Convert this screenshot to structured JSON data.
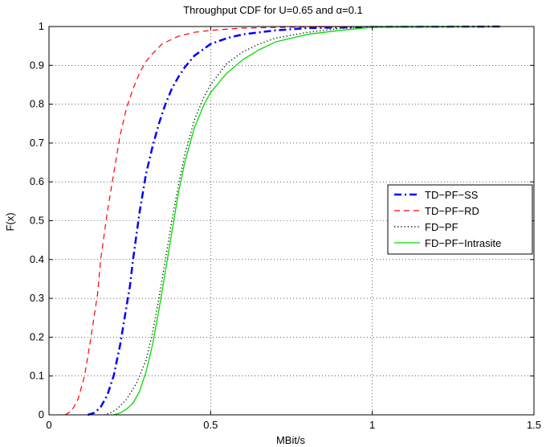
{
  "chart_data": {
    "type": "line",
    "title_prefix": "Throughput CDF for U=0.65 and ",
    "title_symbol": "α",
    "title_suffix": "=0.1",
    "xlabel": "MBit/s",
    "ylabel": "F(x)",
    "xlim": [
      0,
      1.5
    ],
    "ylim": [
      0,
      1
    ],
    "xticks": [
      0,
      0.5,
      1,
      1.5
    ],
    "xtick_labels": [
      "0",
      "0.5",
      "1",
      "1.5"
    ],
    "yticks": [
      0,
      0.1,
      0.2,
      0.3,
      0.4,
      0.5,
      0.6,
      0.7,
      0.8,
      0.9,
      1
    ],
    "ytick_labels": [
      "0",
      "0.1",
      "0.2",
      "0.3",
      "0.4",
      "0.5",
      "0.6",
      "0.7",
      "0.8",
      "0.9",
      "1"
    ],
    "grid": true,
    "legend_position": "right-middle",
    "series": [
      {
        "name": "TD−PF−SS",
        "color": "#0000ff",
        "style": "dashdot",
        "points": [
          [
            0.12,
            0
          ],
          [
            0.14,
            0.005
          ],
          [
            0.16,
            0.02
          ],
          [
            0.18,
            0.05
          ],
          [
            0.2,
            0.1
          ],
          [
            0.22,
            0.18
          ],
          [
            0.24,
            0.28
          ],
          [
            0.25,
            0.33
          ],
          [
            0.26,
            0.4
          ],
          [
            0.27,
            0.46
          ],
          [
            0.28,
            0.52
          ],
          [
            0.3,
            0.62
          ],
          [
            0.32,
            0.69
          ],
          [
            0.34,
            0.75
          ],
          [
            0.36,
            0.8
          ],
          [
            0.38,
            0.84
          ],
          [
            0.4,
            0.87
          ],
          [
            0.42,
            0.895
          ],
          [
            0.45,
            0.925
          ],
          [
            0.5,
            0.955
          ],
          [
            0.55,
            0.97
          ],
          [
            0.6,
            0.98
          ],
          [
            0.7,
            0.99
          ],
          [
            0.8,
            0.996
          ],
          [
            1.0,
            0.999
          ],
          [
            1.4,
            1.0
          ]
        ]
      },
      {
        "name": "TD−PF−RD",
        "color": "#ff0000",
        "style": "dashed",
        "points": [
          [
            0.05,
            0
          ],
          [
            0.07,
            0.01
          ],
          [
            0.09,
            0.04
          ],
          [
            0.11,
            0.1
          ],
          [
            0.13,
            0.2
          ],
          [
            0.15,
            0.31
          ],
          [
            0.16,
            0.4
          ],
          [
            0.18,
            0.52
          ],
          [
            0.2,
            0.62
          ],
          [
            0.22,
            0.72
          ],
          [
            0.24,
            0.79
          ],
          [
            0.26,
            0.84
          ],
          [
            0.28,
            0.88
          ],
          [
            0.3,
            0.91
          ],
          [
            0.32,
            0.93
          ],
          [
            0.35,
            0.955
          ],
          [
            0.4,
            0.975
          ],
          [
            0.45,
            0.985
          ],
          [
            0.5,
            0.99
          ],
          [
            0.6,
            0.996
          ],
          [
            0.8,
            0.999
          ],
          [
            1.0,
            1.0
          ],
          [
            1.4,
            1.0
          ]
        ]
      },
      {
        "name": "FD−PF",
        "color": "#000000",
        "style": "dotted",
        "points": [
          [
            0.17,
            0
          ],
          [
            0.19,
            0.005
          ],
          [
            0.21,
            0.015
          ],
          [
            0.24,
            0.04
          ],
          [
            0.27,
            0.08
          ],
          [
            0.3,
            0.14
          ],
          [
            0.32,
            0.21
          ],
          [
            0.34,
            0.3
          ],
          [
            0.36,
            0.4
          ],
          [
            0.38,
            0.5
          ],
          [
            0.4,
            0.59
          ],
          [
            0.42,
            0.67
          ],
          [
            0.45,
            0.76
          ],
          [
            0.48,
            0.82
          ],
          [
            0.5,
            0.85
          ],
          [
            0.55,
            0.905
          ],
          [
            0.6,
            0.935
          ],
          [
            0.65,
            0.955
          ],
          [
            0.7,
            0.97
          ],
          [
            0.8,
            0.985
          ],
          [
            0.9,
            0.995
          ],
          [
            1.0,
            0.999
          ],
          [
            1.4,
            1.0
          ]
        ]
      },
      {
        "name": "FD−PF−Intrasite",
        "color": "#00dd00",
        "style": "solid",
        "points": [
          [
            0.2,
            0
          ],
          [
            0.22,
            0.005
          ],
          [
            0.24,
            0.015
          ],
          [
            0.26,
            0.03
          ],
          [
            0.28,
            0.06
          ],
          [
            0.3,
            0.11
          ],
          [
            0.32,
            0.18
          ],
          [
            0.34,
            0.27
          ],
          [
            0.36,
            0.37
          ],
          [
            0.38,
            0.47
          ],
          [
            0.4,
            0.57
          ],
          [
            0.42,
            0.65
          ],
          [
            0.45,
            0.74
          ],
          [
            0.48,
            0.8
          ],
          [
            0.5,
            0.83
          ],
          [
            0.55,
            0.88
          ],
          [
            0.6,
            0.915
          ],
          [
            0.65,
            0.94
          ],
          [
            0.7,
            0.96
          ],
          [
            0.8,
            0.98
          ],
          [
            0.9,
            0.99
          ],
          [
            1.0,
            0.998
          ],
          [
            1.4,
            1.0
          ]
        ]
      }
    ]
  }
}
